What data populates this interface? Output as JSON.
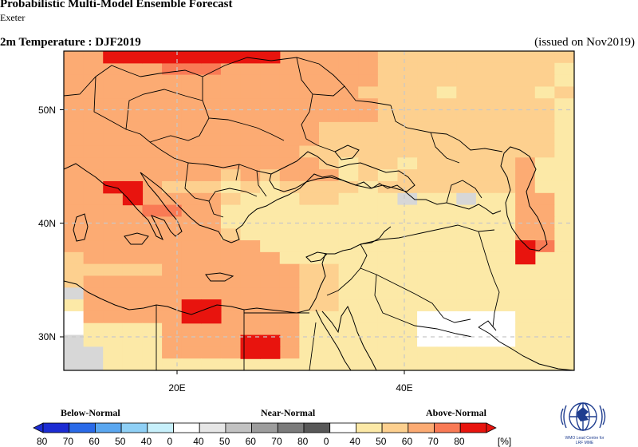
{
  "header": {
    "title": "Probabilistic Multi-Model Ensemble Forecast",
    "subtitle": "Exeter",
    "variable_period": "2m Temperature : DJF2019",
    "issued": "(issued on Nov2019)"
  },
  "map": {
    "lon_range": [
      10,
      55
    ],
    "lat_range": [
      27,
      54
    ],
    "grid_step_deg": 2.5,
    "lat_ticks": [
      "50N",
      "40N",
      "30N"
    ],
    "lon_ticks": [
      "20E",
      "40E"
    ],
    "gridlines": true,
    "colors": {
      "above_40_50": "#fce9a7",
      "above_50_60": "#fdd08f",
      "above_60_70": "#fcab73",
      "above_70_80": "#f97a55",
      "above_80_plus": "#e8140e",
      "near_40_50": "#d7d7d7",
      "no_signal": "#ffffff"
    },
    "grid_rows": [
      "DDDDEEEEEEEDDDDDCCCCCCCCCC",
      "DDDDDEEEDDDDDDDDCCCCCCCCCB",
      "DDDDDDDDDDDDDDDDCCCCCCCCCB",
      "DDDDDDDDDDDDDDDCCCCBCCCCBC",
      "DDDDDDDDDDDDDDDDCCCCCCCCCB",
      "DDDDDDDDDDDDDDDDCCCCCCCCCB",
      "DDDDDDDDDDDDDCCCCCCCCCCCCB",
      "DDDDDDDDDDDDDCCCCCCCCCCCCB",
      "DDDDDDDDDDDDCCCCCCCCCCCCCB",
      "DDDDDDDDDDDDDCBCCBCCCCCDBB",
      "DDDDDDDDCDCDDDBCBCCCCCCDBB",
      "DDDDDCCCBCBCCCCBCCCCCCCDBB",
      "DDDDDDDDCBBBCCBBBABBABBDDB",
      "DDDDEEDDBBBBBBBBBBBBBBBDDB",
      "DDDDDDDDBBBBBBBBBBBBBBBDDB",
      "DDDDDDDDCBBBBBBBBBBBBBBDDB",
      "DDDDDDDDDDBBBBBBBBBBBBBDEB",
      "CDDDDDDDDDDBBBBBBBBBBBBBBB",
      "CCCCCDDDDDDDCCBBBBBBBBBBBB",
      "CDDDDDDDDDDDCCBBBBBBBBBBBB",
      "ADDDDDDDDDDDCCBBBBBBBBBBBB",
      "BDDDDDDDDDDDCCBBBBBBBBBBBB",
      "NDDDDDDDDDDDBBBBBBNNNNNBBB",
      "NBBBBDDDDDDDBBBBBBNNNNNBBB",
      "ABBBBDDDDDDDBBBBBBNNNNNBBB",
      "AABBBDDDDDDDBBBBBBBBBBBBBB",
      "AABBBBBBBBBBBBBBBBBBBBBBBB"
    ]
  },
  "legend": {
    "categories": [
      "Below-Normal",
      "Near-Normal",
      "Above-Normal"
    ],
    "tick_labels": [
      "80",
      "70",
      "60",
      "50",
      "40",
      "0",
      "40",
      "50",
      "60",
      "70",
      "80",
      "0",
      "40",
      "50",
      "60",
      "70",
      "80",
      "[%]"
    ],
    "below_colors": [
      "#1c2cd3",
      "#2a6ae8",
      "#5aa7f0",
      "#8fd0f6",
      "#c7f0fb"
    ],
    "near_colors": [
      "#e6e6e6",
      "#c2c2c2",
      "#9d9d9d",
      "#7b7b7b",
      "#585858"
    ],
    "above_colors": [
      "#fce9a7",
      "#fdd08f",
      "#fcab73",
      "#f97a55",
      "#e8140e"
    ]
  },
  "logo": {
    "line1": "WMO Lead Centre for",
    "line2": "LRF MME"
  }
}
